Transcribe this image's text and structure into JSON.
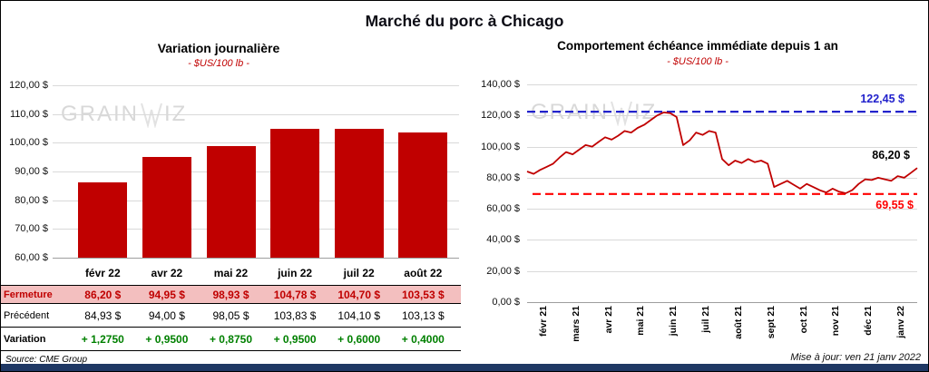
{
  "page": {
    "title": "Marché du porc à Chicago",
    "source": "Source: CME Group",
    "updated": "Mise à jour: ven 21 janv 2022",
    "accent_red": "#C00000",
    "accent_navy": "#1F3864"
  },
  "watermark": {
    "part1": "GRAIN",
    "part2": "IZ"
  },
  "chart_data": [
    {
      "type": "bar",
      "title": "Variation journalière",
      "subtitle": "- $US/100 lb -",
      "categories": [
        "févr 22",
        "avr 22",
        "mai 22",
        "juin 22",
        "juil 22",
        "août 22"
      ],
      "values": [
        86.2,
        94.95,
        98.93,
        104.78,
        104.7,
        103.53
      ],
      "ylim": [
        60,
        120
      ],
      "ytick_labels": [
        "120,00 $",
        "110,00 $",
        "100,00 $",
        "90,00 $",
        "80,00 $",
        "70,00 $",
        "60,00 $"
      ],
      "bar_color": "#C00000",
      "grid": true,
      "legend": "none"
    },
    {
      "type": "line",
      "title": "Comportement échéance immédiate depuis 1 an",
      "subtitle": "- $US/100 lb -",
      "x_labels": [
        "févr 21",
        "mars 21",
        "avr 21",
        "mai 21",
        "juin 21",
        "juil 21",
        "août 21",
        "sept 21",
        "oct 21",
        "nov 21",
        "déc 21",
        "janv 22"
      ],
      "values": [
        84,
        82.5,
        85,
        87,
        89,
        93,
        96.5,
        95,
        98,
        101,
        100,
        103,
        106,
        104.5,
        107,
        110,
        109,
        112,
        114,
        117,
        120,
        122,
        121.5,
        119,
        101,
        104,
        109,
        107.5,
        110,
        109,
        92,
        88,
        91,
        89.5,
        92,
        90,
        91,
        89,
        74,
        76,
        78,
        75.5,
        73,
        76,
        74,
        72,
        70.5,
        73,
        71,
        70,
        72,
        76,
        79,
        78.5,
        80,
        79,
        78,
        81,
        80,
        83,
        86.2
      ],
      "ylim": [
        0,
        140
      ],
      "ytick_labels": [
        "140,00 $",
        "120,00 $",
        "100,00 $",
        "80,00 $",
        "60,00 $",
        "40,00 $",
        "20,00 $",
        "0,00 $"
      ],
      "line_color": "#C00000",
      "high_line": {
        "value": 122.45,
        "label": "122,45 $",
        "color": "#2222CC"
      },
      "low_line": {
        "value": 69.55,
        "label": "69,55 $",
        "color": "#FF0000"
      },
      "last_label": "86,20 $",
      "grid": true,
      "legend": "none"
    }
  ],
  "table": {
    "rows": [
      {
        "label": "Fermeture",
        "style": "fermeture",
        "values": [
          "86,20 $",
          "94,95 $",
          "98,93 $",
          "104,78 $",
          "104,70 $",
          "103,53 $"
        ]
      },
      {
        "label": "Précédent",
        "style": "precedent",
        "values": [
          "84,93 $",
          "94,00 $",
          "98,05 $",
          "103,83 $",
          "104,10 $",
          "103,13 $"
        ]
      },
      {
        "label": "Variation",
        "style": "variation",
        "values": [
          "+ 1,2750",
          "+ 0,9500",
          "+ 0,8750",
          "+ 0,9500",
          "+ 0,6000",
          "+ 0,4000"
        ]
      }
    ]
  }
}
